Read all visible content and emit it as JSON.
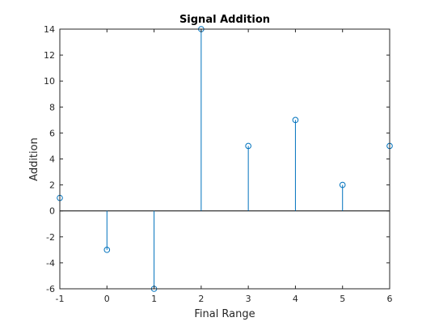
{
  "chart_data": {
    "type": "stem",
    "title": "Signal Addition",
    "xlabel": "Final Range",
    "ylabel": "Addition",
    "xlim": [
      -1,
      6
    ],
    "ylim": [
      -6,
      14
    ],
    "xticks": [
      "-1",
      "0",
      "1",
      "2",
      "3",
      "4",
      "5",
      "6"
    ],
    "yticks": [
      "-6",
      "-4",
      "-2",
      "0",
      "2",
      "4",
      "6",
      "8",
      "10",
      "12",
      "14"
    ],
    "grid": false,
    "box": true,
    "series": [
      {
        "x": [
          -1,
          0,
          1,
          2,
          3,
          4,
          5,
          6
        ],
        "y": [
          1,
          -3,
          -6,
          14,
          5,
          7,
          2,
          5
        ],
        "marker": "circle",
        "color": "#0072BD"
      }
    ],
    "baseline": {
      "value": 0,
      "color": "#000000"
    }
  }
}
